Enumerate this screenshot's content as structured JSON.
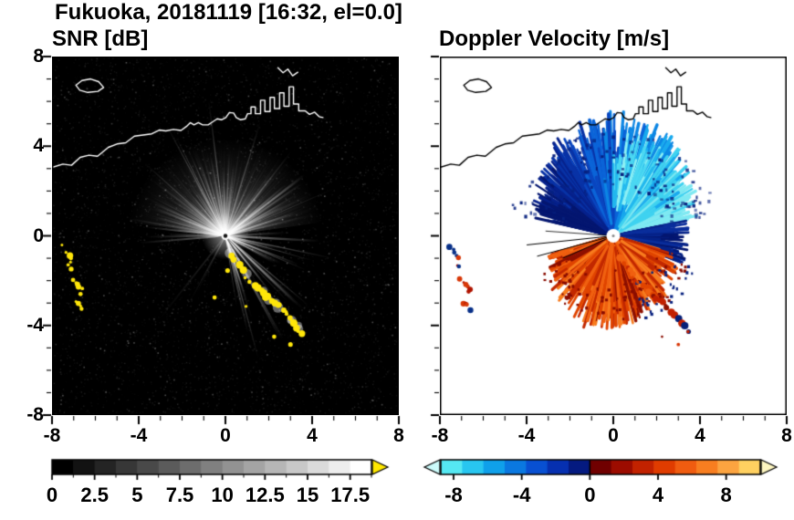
{
  "figure": {
    "title": "Fukuoka, 20181119 [16:32, el=0.0]"
  },
  "panels": {
    "snr": {
      "title": "SNR [dB]"
    },
    "doppler": {
      "title": "Doppler Velocity [m/s]"
    }
  },
  "axes": {
    "xlim": [
      -8,
      8
    ],
    "ylim": [
      -8,
      8
    ],
    "major_ticks": [
      -8,
      -4,
      0,
      4,
      8
    ],
    "minor_step": 1,
    "x_labels": [
      "-8",
      "-4",
      "0",
      "4",
      "8"
    ],
    "y_values": [
      8,
      4,
      0,
      -4,
      -8
    ],
    "y_labels": [
      "8",
      "4",
      "0",
      "-4",
      "-8"
    ]
  },
  "colorbars": {
    "snr": {
      "range": [
        0,
        18.75
      ],
      "n_segments": 15,
      "values": [
        0,
        2.5,
        5,
        7.5,
        10,
        12.5,
        15,
        17.5
      ],
      "labels": [
        "0",
        "2.5",
        "5",
        "7.5",
        "10",
        "12.5",
        "15",
        "17.5"
      ],
      "over_color": "#ffe800"
    },
    "doppler": {
      "range": [
        -8.75,
        10
      ],
      "values": [
        -8,
        -4,
        0,
        4,
        8
      ],
      "labels": [
        "-8",
        "-4",
        "0",
        "4",
        "8"
      ],
      "segment_colors": [
        "#55e8f2",
        "#28c6f0",
        "#0fa0ea",
        "#0a78e0",
        "#0850d2",
        "#0630b0",
        "#041a80",
        "#700000",
        "#9c0c00",
        "#c22200",
        "#e03c00",
        "#f05c10",
        "#f87e20",
        "#fca440",
        "#ffd060"
      ],
      "under_color": "#ccfbfb",
      "over_color": "#fdf6c0"
    }
  },
  "palette": {
    "snr_yellow": "#ffe60a",
    "doppler_north": [
      "#7fe9f2",
      "#3fd2f0",
      "#19aaee",
      "#0c86e4",
      "#0b64d8",
      "#0a46c0",
      "#0832a6",
      "#06218c",
      "#041670"
    ],
    "doppler_cyan_patch": [
      "#8df0f5",
      "#4cd8f2",
      "#22b8ee"
    ],
    "doppler_east_lobe": [
      "#031670",
      "#052288",
      "#0a2e9c"
    ],
    "doppler_south": [
      "#8e1000",
      "#c22800",
      "#e04400",
      "#f06010",
      "#f87c1e"
    ],
    "navy_speck": "#06207e",
    "dark_red_speck": "#8a0c00",
    "arc_warm": [
      "#f06010",
      "#e04400",
      "#c82800"
    ],
    "arc_tail": [
      "#c22000",
      "#8e1000",
      "#062078"
    ],
    "blob_red": [
      "#b01400",
      "#d83808"
    ],
    "blob_navy": "#083088"
  },
  "map": {
    "coast_main": [
      [
        -8.0,
        3.05
      ],
      [
        -7.5,
        3.2
      ],
      [
        -7.1,
        3.15
      ],
      [
        -6.7,
        3.5
      ],
      [
        -6.3,
        3.6
      ],
      [
        -5.9,
        3.55
      ],
      [
        -5.4,
        3.95
      ],
      [
        -5.0,
        4.1
      ],
      [
        -4.6,
        4.15
      ],
      [
        -4.2,
        4.45
      ],
      [
        -3.8,
        4.5
      ],
      [
        -3.4,
        4.55
      ],
      [
        -3.05,
        4.72
      ],
      [
        -2.75,
        4.68
      ],
      [
        -2.4,
        4.75
      ],
      [
        -2.05,
        4.7
      ],
      [
        -1.8,
        4.88
      ],
      [
        -1.62,
        5.05
      ],
      [
        -1.45,
        4.95
      ],
      [
        -1.25,
        5.05
      ],
      [
        -1.05,
        4.95
      ],
      [
        -0.8,
        4.95
      ],
      [
        -0.6,
        5.08
      ],
      [
        -0.38,
        5.22
      ],
      [
        -0.18,
        5.18
      ],
      [
        0.02,
        5.28
      ],
      [
        0.18,
        5.5
      ],
      [
        0.38,
        5.48
      ],
      [
        0.5,
        5.28
      ],
      [
        0.7,
        5.18
      ],
      [
        0.92,
        5.22
      ],
      [
        1.02,
        5.45
      ],
      [
        1.18,
        5.45
      ],
      [
        1.18,
        5.75
      ],
      [
        1.38,
        5.75
      ],
      [
        1.38,
        5.45
      ],
      [
        1.62,
        5.45
      ],
      [
        1.62,
        6.05
      ],
      [
        1.82,
        6.05
      ],
      [
        1.82,
        5.55
      ],
      [
        2.06,
        5.55
      ],
      [
        2.06,
        6.18
      ],
      [
        2.26,
        6.18
      ],
      [
        2.26,
        5.68
      ],
      [
        2.5,
        5.68
      ],
      [
        2.5,
        6.38
      ],
      [
        2.7,
        6.38
      ],
      [
        2.7,
        5.78
      ],
      [
        2.94,
        5.78
      ],
      [
        2.94,
        6.65
      ],
      [
        3.14,
        6.65
      ],
      [
        3.14,
        5.88
      ],
      [
        3.38,
        5.88
      ],
      [
        3.38,
        5.58
      ],
      [
        3.68,
        5.58
      ],
      [
        3.88,
        5.42
      ],
      [
        4.12,
        5.52
      ],
      [
        4.32,
        5.32
      ],
      [
        4.5,
        5.28
      ]
    ],
    "island": [
      [
        -6.9,
        6.72
      ],
      [
        -6.62,
        6.93
      ],
      [
        -6.22,
        7.0
      ],
      [
        -5.85,
        6.88
      ],
      [
        -5.62,
        6.62
      ],
      [
        -5.88,
        6.45
      ],
      [
        -6.35,
        6.4
      ],
      [
        -6.72,
        6.5
      ],
      [
        -6.9,
        6.72
      ]
    ],
    "hook": [
      [
        2.42,
        7.5
      ],
      [
        2.66,
        7.28
      ],
      [
        2.88,
        7.44
      ],
      [
        3.1,
        7.14
      ],
      [
        3.34,
        7.3
      ]
    ]
  },
  "features": {
    "arc": [
      [
        0.3,
        -0.85
      ],
      [
        0.62,
        -1.35
      ],
      [
        0.95,
        -1.8
      ],
      [
        1.3,
        -2.15
      ],
      [
        1.7,
        -2.5
      ],
      [
        2.1,
        -2.85
      ],
      [
        2.5,
        -3.15
      ],
      [
        2.85,
        -3.5
      ],
      [
        3.15,
        -3.85
      ],
      [
        3.42,
        -4.2
      ],
      [
        3.6,
        -4.45
      ]
    ],
    "west_blobs": [
      [
        [
          -7.5,
          -0.45
        ],
        [
          -7.3,
          -0.7
        ],
        [
          -7.15,
          -1.0
        ],
        [
          -7.2,
          -1.3
        ],
        [
          -6.95,
          -1.55
        ]
      ],
      [
        [
          -7.05,
          -1.95
        ],
        [
          -6.85,
          -2.15
        ],
        [
          -6.6,
          -2.4
        ],
        [
          -6.72,
          -2.68
        ]
      ],
      [
        [
          -6.95,
          -2.98
        ],
        [
          -6.7,
          -3.12
        ],
        [
          -6.52,
          -3.42
        ]
      ]
    ],
    "specks": [
      [
        -0.5,
        -2.75
      ],
      [
        0.95,
        -3.15
      ],
      [
        2.25,
        -4.5
      ],
      [
        3.0,
        -4.85
      ],
      [
        0.1,
        -1.55
      ]
    ],
    "snr_rays": [
      [
        97,
        150,
        0.55
      ],
      [
        118,
        138,
        0.5
      ],
      [
        138,
        120,
        0.45
      ],
      [
        73,
        132,
        0.5
      ],
      [
        52,
        118,
        0.45
      ],
      [
        170,
        108,
        0.4
      ],
      [
        -62,
        128,
        0.6
      ],
      [
        -40,
        118,
        0.55
      ],
      [
        -23,
        96,
        0.5
      ],
      [
        30,
        92,
        0.45
      ],
      [
        -75,
        140,
        0.5
      ]
    ],
    "shadow_rays": [
      [
        197,
        118,
        2.2
      ],
      [
        207,
        96,
        1.6
      ],
      [
        216,
        82,
        1.2
      ],
      [
        -57,
        108,
        1.4
      ],
      [
        -46,
        86,
        1.0
      ]
    ],
    "doppler_black_rays": [
      [
        186,
        95,
        1.0
      ],
      [
        195,
        86,
        1.0
      ],
      [
        204,
        60,
        0.9
      ],
      [
        176,
        74,
        0.8
      ]
    ]
  },
  "chart_data": {
    "type": "heatmap",
    "title": "Fukuoka, 20181119 [16:32, el=0.0]",
    "layout": "two radar PPI panels side by side, shared x/y range, horizontal colorbars below each panel",
    "panels": [
      {
        "title": "SNR [dB]",
        "xlim": [
          -8,
          8
        ],
        "ylim": [
          -8,
          8
        ],
        "x_ticks": [
          -8,
          -4,
          0,
          4,
          8
        ],
        "y_ticks": [
          -8,
          -4,
          0,
          4,
          8
        ],
        "colorbar": {
          "range": [
            0,
            18.75
          ],
          "ticks": [
            0,
            2.5,
            5,
            7.5,
            10,
            12.5,
            15,
            17.5
          ],
          "colormap": "grayscale black to white",
          "over_color": "yellow"
        },
        "content": "Radar at (0,0); bright radial SNR beams on black background; broad echo fan north of radar to r=4; bright beams to the southeast; saturated yellow (>18.75 dB) echo arc from (0.3,-0.9) to (3.6,-4.5); yellow clutter patches near (-7.2,-1.0), (-6.8,-2.3), (-6.7,-3.2); white coastline of Fukuoka bay along y=3..7 with island near (-6.3,6.7) and harbor structures near (1..3.4,5.5..6.7)"
      },
      {
        "title": "Doppler Velocity [m/s]",
        "xlim": [
          -8,
          8
        ],
        "ylim": [
          -8,
          8
        ],
        "x_ticks": [
          -8,
          -4,
          0,
          4,
          8
        ],
        "y_ticks": [
          -8,
          -4,
          0,
          4,
          8
        ],
        "colorbar": {
          "range": [
            -8.75,
            10
          ],
          "ticks": [
            -8,
            -4,
            0,
            4,
            8
          ],
          "colormap": "cyan-blue-navy for negative, darkred-red-orange-yellow for positive"
        },
        "content": "Negative velocities (-7 to -1 m/s, cyan to navy) in fan north of radar; dark navy lobe just east of radar; positive velocities (+2 to +7 m/s, orange to red) in fan south of radar; mixed red/navy clutter patches west near x=-7; same echo arc in red/orange/navy; black coastline on white background"
      }
    ]
  }
}
